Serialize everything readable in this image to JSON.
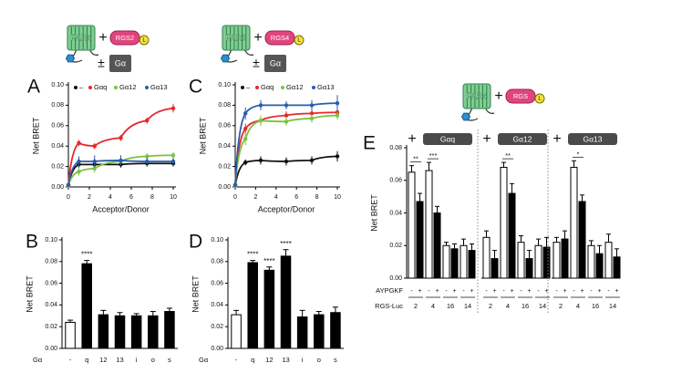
{
  "chart_data": [
    {
      "type": "line",
      "panel": "A",
      "xlabel": "Acceptor/Donor",
      "ylabel": "Net BRET",
      "x": [
        0,
        1,
        2.5,
        5,
        7.5,
        10
      ],
      "xlim": [
        0,
        10
      ],
      "ylim": [
        0,
        0.1
      ],
      "xticks": [
        0,
        2,
        4,
        6,
        8,
        10
      ],
      "yticks": [
        {
          "value": 0,
          "label": "0.00"
        },
        {
          "value": 0.02,
          "label": "0.02"
        },
        {
          "value": 0.04,
          "label": "0.04"
        },
        {
          "value": 0.06,
          "label": "0.06"
        },
        {
          "value": 0.08,
          "label": "0.08"
        },
        {
          "value": 0.1,
          "label": "0.10"
        }
      ],
      "series": [
        {
          "name": "–",
          "color": "#111111",
          "values": [
            0.001,
            0.022,
            0.022,
            0.022,
            0.023,
            0.023
          ],
          "errors": [
            0.001,
            0.003,
            0.003,
            0.003,
            0.003,
            0.003
          ]
        },
        {
          "name": "Gαq",
          "color": "#e8262b",
          "values": [
            0.002,
            0.043,
            0.04,
            0.048,
            0.065,
            0.077
          ],
          "errors": [
            0.001,
            0.003,
            0.003,
            0.003,
            0.003,
            0.004
          ]
        },
        {
          "name": "Gα12",
          "color": "#7cc242",
          "values": [
            0.001,
            0.015,
            0.018,
            0.025,
            0.03,
            0.031
          ],
          "errors": [
            0.001,
            0.004,
            0.004,
            0.004,
            0.003,
            0.003
          ]
        },
        {
          "name": "Gα13",
          "color": "#2a5caa",
          "values": [
            0.002,
            0.025,
            0.025,
            0.026,
            0.025,
            0.025
          ],
          "errors": [
            0.001,
            0.005,
            0.006,
            0.005,
            0.004,
            0.004
          ]
        }
      ]
    },
    {
      "type": "bar",
      "panel": "B",
      "ylabel": "Net BRET",
      "xlabel": "Gα",
      "categories": [
        "-",
        "q",
        "12",
        "13",
        "i",
        "o",
        "s"
      ],
      "values": [
        0.024,
        0.078,
        0.031,
        0.03,
        0.03,
        0.03,
        0.034
      ],
      "errors": [
        0.002,
        0.003,
        0.004,
        0.003,
        0.002,
        0.004,
        0.003
      ],
      "colors": [
        "#ffffff",
        "#000000",
        "#000000",
        "#000000",
        "#000000",
        "#000000",
        "#000000"
      ],
      "significance": [
        null,
        "****",
        null,
        null,
        null,
        null,
        null
      ],
      "ylim": [
        0,
        0.1
      ],
      "yticks": [
        {
          "value": 0,
          "label": "0.00"
        },
        {
          "value": 0.02,
          "label": "0.02"
        },
        {
          "value": 0.04,
          "label": "0.04"
        },
        {
          "value": 0.06,
          "label": "0.06"
        },
        {
          "value": 0.08,
          "label": "0.08"
        },
        {
          "value": 0.1,
          "label": "0.10"
        }
      ]
    },
    {
      "type": "line",
      "panel": "C",
      "xlabel": "Acceptor/Donor",
      "ylabel": "Net BRET",
      "x": [
        0,
        1,
        2.5,
        5,
        7.5,
        10
      ],
      "xlim": [
        0,
        10
      ],
      "ylim": [
        0,
        0.1
      ],
      "xticks": [
        0,
        2,
        4,
        6,
        8,
        10
      ],
      "yticks": [
        {
          "value": 0,
          "label": "0.00"
        },
        {
          "value": 0.02,
          "label": "0.02"
        },
        {
          "value": 0.04,
          "label": "0.04"
        },
        {
          "value": 0.06,
          "label": "0.06"
        },
        {
          "value": 0.08,
          "label": "0.08"
        },
        {
          "value": 0.1,
          "label": "0.10"
        }
      ],
      "series": [
        {
          "name": "–",
          "color": "#111111",
          "values": [
            0.001,
            0.024,
            0.026,
            0.025,
            0.026,
            0.03
          ],
          "errors": [
            0.001,
            0.003,
            0.004,
            0.004,
            0.004,
            0.005
          ]
        },
        {
          "name": "Gαq",
          "color": "#e8262b",
          "values": [
            0.002,
            0.057,
            0.065,
            0.07,
            0.072,
            0.073
          ],
          "errors": [
            0.001,
            0.005,
            0.005,
            0.004,
            0.004,
            0.004
          ]
        },
        {
          "name": "Gα12",
          "color": "#7cc242",
          "values": [
            0.001,
            0.047,
            0.065,
            0.064,
            0.067,
            0.07
          ],
          "errors": [
            0.001,
            0.006,
            0.005,
            0.004,
            0.004,
            0.004
          ]
        },
        {
          "name": "Gα13",
          "color": "#2a5caa",
          "values": [
            0.002,
            0.072,
            0.08,
            0.08,
            0.08,
            0.082
          ],
          "errors": [
            0.001,
            0.006,
            0.005,
            0.004,
            0.005,
            0.008
          ]
        }
      ]
    },
    {
      "type": "bar",
      "panel": "D",
      "ylabel": "Net BRET",
      "xlabel": "Gα",
      "categories": [
        "-",
        "q",
        "12",
        "13",
        "i",
        "o",
        "s"
      ],
      "values": [
        0.031,
        0.079,
        0.072,
        0.085,
        0.029,
        0.031,
        0.033
      ],
      "errors": [
        0.004,
        0.002,
        0.003,
        0.006,
        0.006,
        0.003,
        0.005
      ],
      "colors": [
        "#ffffff",
        "#000000",
        "#000000",
        "#000000",
        "#000000",
        "#000000",
        "#000000"
      ],
      "significance": [
        null,
        "****",
        "****",
        "****",
        null,
        null,
        null
      ],
      "ylim": [
        0,
        0.1
      ],
      "yticks": [
        {
          "value": 0,
          "label": "0.00"
        },
        {
          "value": 0.02,
          "label": "0.02"
        },
        {
          "value": 0.04,
          "label": "0.04"
        },
        {
          "value": 0.06,
          "label": "0.06"
        },
        {
          "value": 0.08,
          "label": "0.08"
        },
        {
          "value": 0.1,
          "label": "0.10"
        }
      ]
    },
    {
      "type": "grouped_bar",
      "panel": "E",
      "ylabel": "Net BRET",
      "treatment_label": "AYPGKF",
      "category_label": "RGS-Luc",
      "ylim": [
        0,
        0.08
      ],
      "yticks": [
        {
          "value": 0,
          "label": "0.00"
        },
        {
          "value": 0.02,
          "label": "0.02"
        },
        {
          "value": 0.04,
          "label": "0.04"
        },
        {
          "value": 0.06,
          "label": "0.06"
        },
        {
          "value": 0.08,
          "label": "0.08"
        }
      ],
      "groups": [
        {
          "plus": "+",
          "title": "Gαq",
          "categories": [
            "2",
            "4",
            "16",
            "14"
          ],
          "significance": [
            "**",
            "***",
            null,
            null
          ],
          "series": [
            {
              "name": "-",
              "color": "#ffffff",
              "values": [
                0.065,
                0.066,
                0.02,
                0.02
              ],
              "errors": [
                0.004,
                0.005,
                0.002,
                0.004
              ]
            },
            {
              "name": "+",
              "color": "#000000",
              "values": [
                0.047,
                0.04,
                0.018,
                0.017
              ],
              "errors": [
                0.005,
                0.004,
                0.003,
                0.004
              ]
            }
          ]
        },
        {
          "plus": "+",
          "title": "Gα12",
          "categories": [
            "2",
            "4",
            "16",
            "14"
          ],
          "significance": [
            null,
            "**",
            null,
            null
          ],
          "series": [
            {
              "name": "-",
              "color": "#ffffff",
              "values": [
                0.025,
                0.068,
                0.022,
                0.02
              ],
              "errors": [
                0.004,
                0.003,
                0.004,
                0.004
              ]
            },
            {
              "name": "+",
              "color": "#000000",
              "values": [
                0.012,
                0.052,
                0.012,
                0.019
              ],
              "errors": [
                0.005,
                0.006,
                0.005,
                0.006
              ]
            }
          ]
        },
        {
          "plus": "+",
          "title": "Gα13",
          "categories": [
            "2",
            "4",
            "16",
            "14"
          ],
          "significance": [
            null,
            "*",
            null,
            null
          ],
          "series": [
            {
              "name": "-",
              "color": "#ffffff",
              "values": [
                0.022,
                0.068,
                0.02,
                0.022
              ],
              "errors": [
                0.003,
                0.004,
                0.003,
                0.005
              ]
            },
            {
              "name": "+",
              "color": "#000000",
              "values": [
                0.024,
                0.047,
                0.015,
                0.013
              ],
              "errors": [
                0.005,
                0.004,
                0.005,
                0.005
              ]
            }
          ]
        }
      ]
    }
  ],
  "diagrams": [
    {
      "receptor": "PAR4",
      "plus": "+",
      "rgs": "RGS2",
      "tag": "L",
      "pm": "±",
      "galpha": "Gα"
    },
    {
      "receptor": "PAR1",
      "plus": "+",
      "rgs": "RGS4",
      "tag": "L",
      "pm": "±",
      "galpha": "Gα"
    },
    {
      "receptor": "PAR4",
      "plus": "+",
      "rgs": "RGS",
      "tag": "L"
    }
  ]
}
